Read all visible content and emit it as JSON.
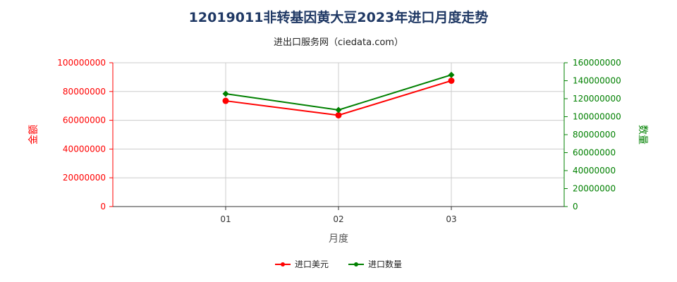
{
  "header": {
    "title": "12019011非转基因黄大豆2023年进口月度走势",
    "subtitle": "进出口服务网（ciedata.com）"
  },
  "colors": {
    "series1": "#ff0000",
    "series2": "#008000",
    "grid": "#cccccc",
    "axis": "#333333"
  },
  "chart_data": {
    "type": "line",
    "title": "12019011非转基因黄大豆2023年进口月度走势",
    "subtitle": "进出口服务网（ciedata.com）",
    "xlabel": "月度",
    "ylabel_left": "金额",
    "ylabel_right": "数量",
    "categories": [
      "01",
      "02",
      "03"
    ],
    "y_left": {
      "lim": [
        0,
        100000000
      ],
      "ticks": [
        "0",
        "20000000",
        "40000000",
        "60000000",
        "80000000",
        "100000000"
      ]
    },
    "y_right": {
      "lim": [
        0,
        160000000
      ],
      "ticks": [
        "0",
        "20000000",
        "40000000",
        "60000000",
        "80000000",
        "100000000",
        "120000000",
        "140000000",
        "160000000"
      ]
    },
    "series": [
      {
        "name": "进口美元",
        "axis": "left",
        "marker": "circle",
        "values": [
          73500000,
          63500000,
          87500000
        ]
      },
      {
        "name": "进口数量",
        "axis": "right",
        "marker": "diamond",
        "values": [
          125500000,
          107500000,
          146500000
        ]
      }
    ],
    "grid": true,
    "legend": "bottom-center"
  }
}
